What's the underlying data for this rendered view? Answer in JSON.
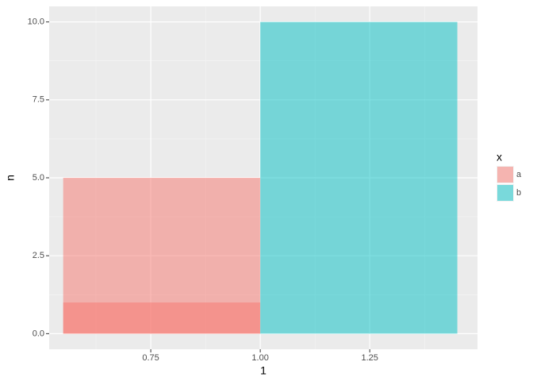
{
  "chart_data": {
    "type": "bar",
    "x_label": "1",
    "y_label": "n",
    "legend_title": "x",
    "series": [
      {
        "name": "a",
        "color": "#F8766D",
        "xmin": 0.55,
        "xmax": 1.0,
        "values": [
          5,
          1
        ]
      },
      {
        "name": "b",
        "color": "#00BFC4",
        "xmin": 1.0,
        "xmax": 1.45,
        "values": [
          10
        ]
      }
    ],
    "opacity": 0.5,
    "xlim": [
      0.518,
      1.496
    ],
    "xticks": [
      {
        "value": 0.75,
        "label": "0.75"
      },
      {
        "value": 1,
        "label": "1.00"
      },
      {
        "value": 1.25,
        "label": "1.25"
      }
    ],
    "minor_xticks": [
      0.625,
      0.875,
      1.125,
      1.375
    ],
    "ylim": [
      -0.5,
      10.5
    ],
    "yticks": [
      {
        "value": 0,
        "label": "0.0"
      },
      2.5,
      {
        "value": 5,
        "label": "5.0"
      },
      7.5,
      {
        "value": 10,
        "label": "10.0"
      }
    ],
    "minor_yticks": [
      1.25,
      3.75,
      6.25,
      8.75
    ],
    "grid": true,
    "legend": "right"
  }
}
